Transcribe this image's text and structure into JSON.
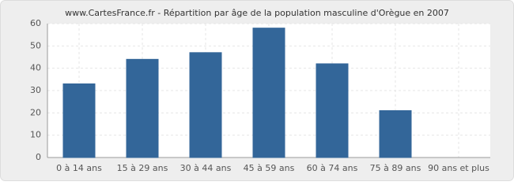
{
  "chart_data": {
    "type": "bar",
    "title": "www.CartesFrance.fr - Répartition par âge de la population masculine d'Orègue en 2007",
    "categories": [
      "0 à 14 ans",
      "15 à 29 ans",
      "30 à 44 ans",
      "45 à 59 ans",
      "60 à 74 ans",
      "75 à 89 ans",
      "90 ans et plus"
    ],
    "values": [
      33,
      44,
      47,
      58,
      42,
      21,
      0
    ],
    "color": "#336699",
    "ylim": [
      0,
      60
    ],
    "yticks": [
      0,
      10,
      20,
      30,
      40,
      50,
      60
    ],
    "grid": true
  }
}
